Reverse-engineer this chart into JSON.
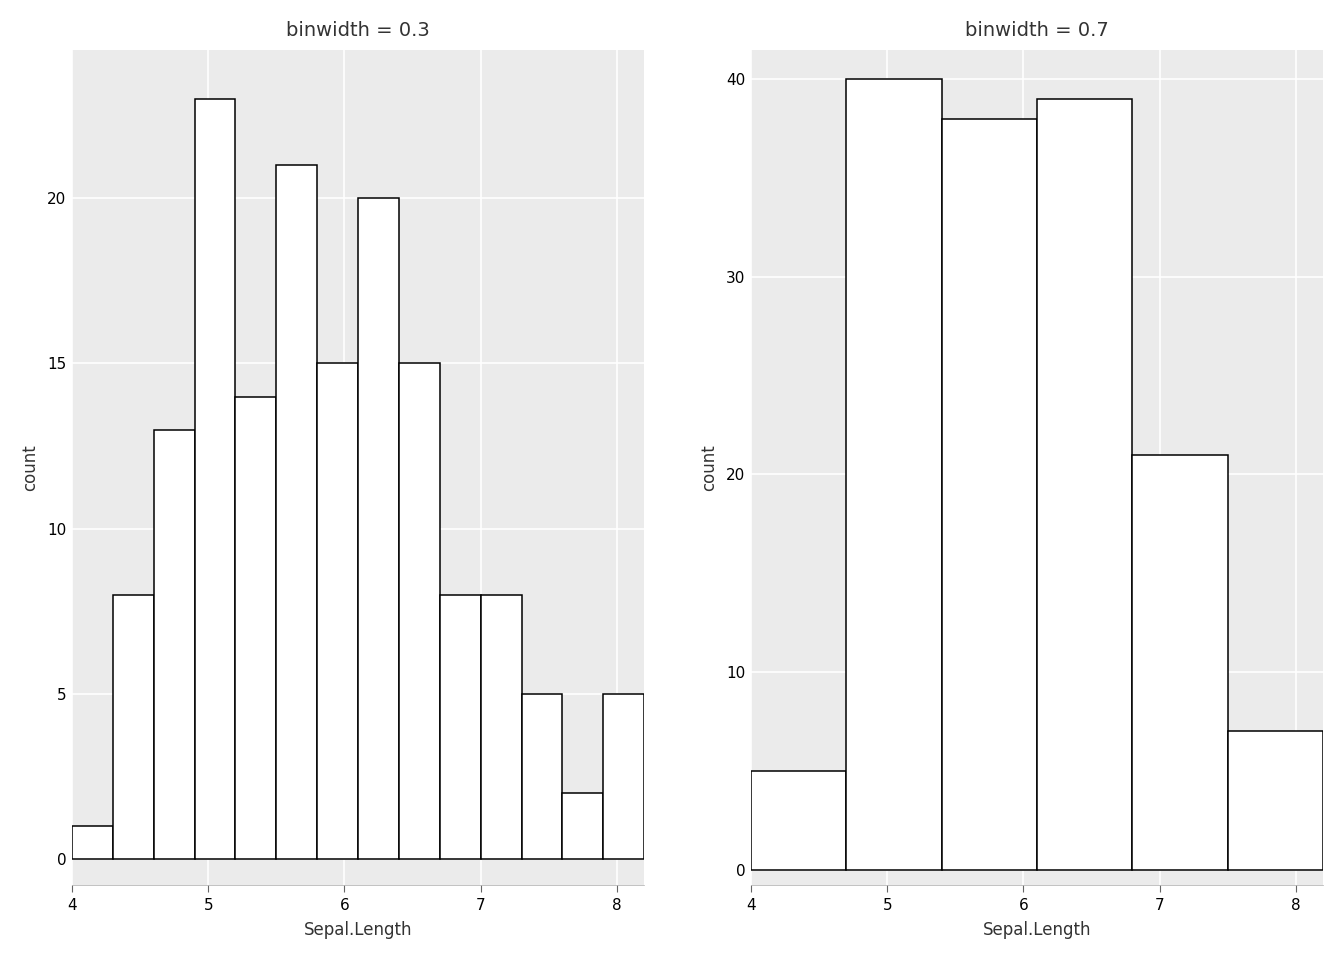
{
  "title1": "binwidth = 0.3",
  "title2": "binwidth = 0.7",
  "xlabel": "Sepal.Length",
  "ylabel": "count",
  "bg_color": "#EBEBEB",
  "fig_bg_color": "#FFFFFF",
  "bar_facecolor": "white",
  "bar_edgecolor": "black",
  "hist1_bins": [
    4.0,
    4.3,
    4.6,
    4.9,
    5.2,
    5.5,
    5.8,
    6.1,
    6.4,
    6.7,
    7.0,
    7.3,
    7.6,
    7.9,
    8.2
  ],
  "hist1_counts": [
    1,
    8,
    13,
    23,
    14,
    21,
    15,
    20,
    15,
    8,
    8,
    5,
    2,
    5
  ],
  "hist2_bins": [
    4.0,
    4.7,
    5.4,
    6.1,
    6.8,
    7.5,
    8.2
  ],
  "hist2_counts": [
    5,
    40,
    38,
    39,
    21,
    7
  ],
  "xlim": [
    4.0,
    8.2
  ],
  "ylim1_max": 24,
  "ylim2_max": 41,
  "yticks1": [
    0,
    5,
    10,
    15,
    20
  ],
  "yticks2": [
    0,
    10,
    20,
    30,
    40
  ],
  "xticks": [
    4,
    5,
    6,
    7,
    8
  ],
  "title_fontsize": 14,
  "axis_label_fontsize": 12,
  "tick_fontsize": 11,
  "grid_color": "white",
  "grid_linewidth": 1.2,
  "bar_linewidth": 1.1
}
